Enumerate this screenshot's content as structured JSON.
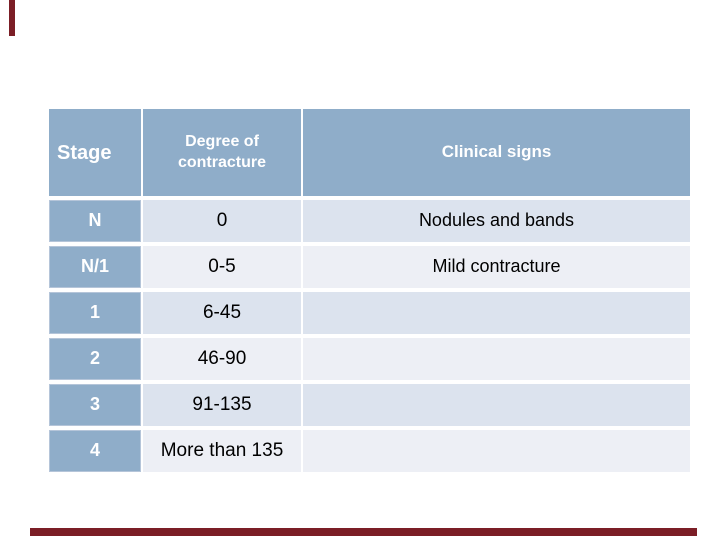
{
  "slide": {
    "background_color": "#ffffff",
    "accent_bar_color": "#7b1e26"
  },
  "table": {
    "headers": [
      "Stage",
      "Degree of contracture",
      "Clinical signs"
    ],
    "rows": [
      {
        "stage": "N",
        "degree": "0",
        "signs": "Nodules and bands"
      },
      {
        "stage": "N/1",
        "degree": "0-5",
        "signs": "Mild contracture"
      },
      {
        "stage": "1",
        "degree": "6-45",
        "signs": ""
      },
      {
        "stage": "2",
        "degree": "46-90",
        "signs": ""
      },
      {
        "stage": "3",
        "degree": "91-135",
        "signs": ""
      },
      {
        "stage": "4",
        "degree": "More than 135",
        "signs": ""
      }
    ],
    "colors": {
      "header_bg": "#8fadc9",
      "row_band_dark": "#dce3ee",
      "row_band_light": "#edeff5",
      "header_text": "#ffffff",
      "body_text": "#000000"
    }
  }
}
